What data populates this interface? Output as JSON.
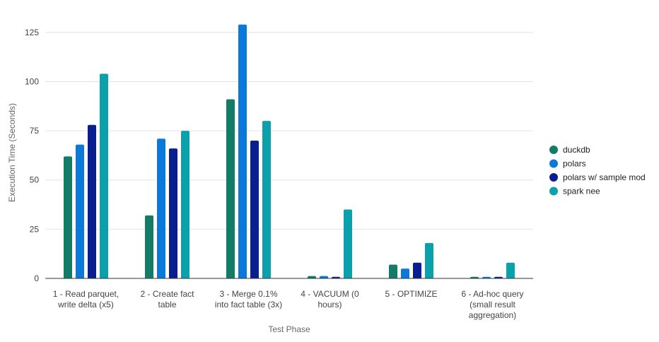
{
  "chart_data": {
    "type": "bar",
    "xlabel": "Test Phase",
    "ylabel": "Execution Time (Seconds)",
    "ylim": [
      0,
      135
    ],
    "yticks": [
      0,
      25,
      50,
      75,
      100,
      125
    ],
    "grid": true,
    "legend_position": "right",
    "categories": [
      [
        "1 - Read parquet,",
        "write delta (x5)"
      ],
      [
        "2 - Create fact",
        "table"
      ],
      [
        "3 - Merge 0.1%",
        "into fact table (3x)"
      ],
      [
        "4 - VACUUM (0",
        "hours)"
      ],
      [
        "5 - OPTIMIZE"
      ],
      [
        "6 - Ad-hoc query",
        "(small result",
        "aggregation)"
      ]
    ],
    "series": [
      {
        "name": "duckdb",
        "color": "#137c67",
        "values": [
          62,
          32,
          91,
          1.2,
          7,
          0.8
        ]
      },
      {
        "name": "polars",
        "color": "#0b79d9",
        "values": [
          68,
          71,
          129,
          1.2,
          5,
          0.8
        ]
      },
      {
        "name": "polars w/ sample mod",
        "color": "#0a1f8f",
        "values": [
          78,
          66,
          70,
          0.8,
          8,
          0.8
        ]
      },
      {
        "name": "spark nee",
        "color": "#0aa1ac",
        "values": [
          104,
          75,
          80,
          35,
          18,
          8
        ]
      }
    ]
  }
}
